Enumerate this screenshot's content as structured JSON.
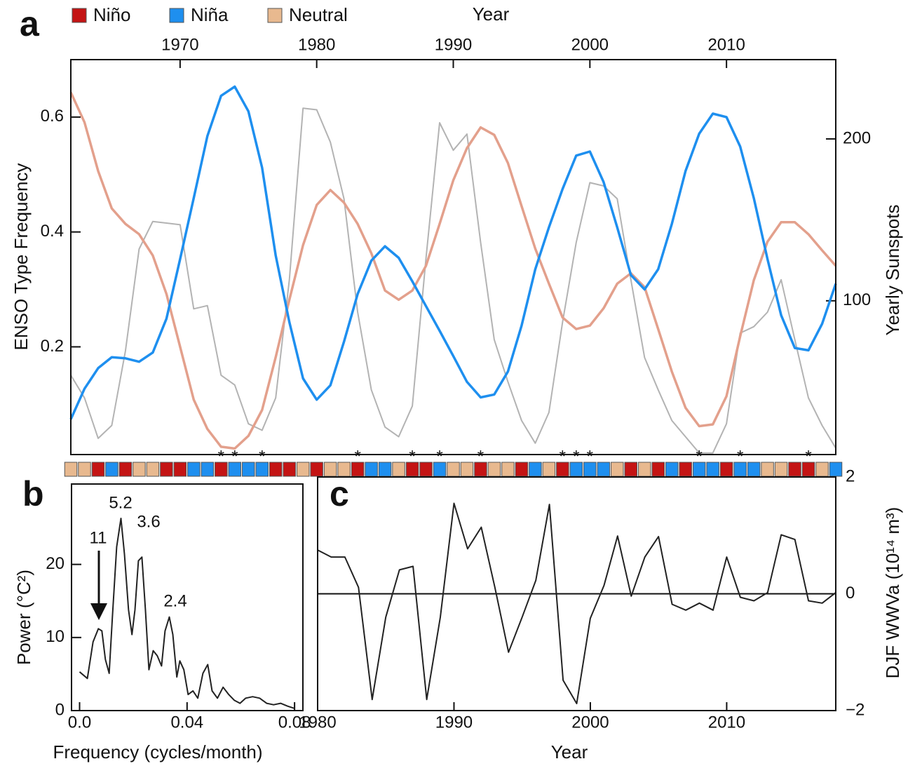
{
  "chart_data": [
    {
      "type": "line",
      "panel": "a",
      "xlabel": "Year",
      "ylabel": "ENSO Type Frequency",
      "y2label": "Yearly Sunspots",
      "x_axis": "top",
      "x": [
        1962,
        1963,
        1964,
        1965,
        1966,
        1967,
        1968,
        1969,
        1970,
        1971,
        1972,
        1973,
        1974,
        1975,
        1976,
        1977,
        1978,
        1979,
        1980,
        1981,
        1982,
        1983,
        1984,
        1985,
        1986,
        1987,
        1988,
        1989,
        1990,
        1991,
        1992,
        1993,
        1994,
        1995,
        1996,
        1997,
        1998,
        1999,
        2000,
        2001,
        2002,
        2003,
        2004,
        2005,
        2006,
        2007,
        2008,
        2009,
        2010,
        2011,
        2012,
        2013,
        2014,
        2015,
        2016,
        2017,
        2018
      ],
      "xlim": [
        1962,
        2018
      ],
      "xticks": [
        1970,
        1980,
        1990,
        2000,
        2010
      ],
      "ylim": [
        0.0125,
        0.7
      ],
      "yticks": [
        0.2,
        0.4,
        0.6
      ],
      "y2lim": [
        5,
        249
      ],
      "y2ticks": [
        100,
        200
      ],
      "series": [
        {
          "color": "#b3b3b3",
          "axis": "y2",
          "values": [
            54,
            40,
            15,
            23,
            69,
            132,
            149,
            148,
            147,
            95,
            97,
            54,
            48,
            24,
            20,
            40,
            113,
            219,
            218,
            198,
            163,
            93,
            45,
            22,
            16,
            35,
            126,
            210,
            193,
            203,
            136,
            76,
            50,
            26,
            12,
            31,
            87,
            136,
            173,
            171,
            163,
            113,
            65,
            45,
            26,
            16,
            6,
            6,
            24,
            80,
            84,
            93,
            113,
            76,
            40,
            23,
            9
          ]
        },
        {
          "color": "#e3a08c",
          "values": [
            0.643,
            0.591,
            0.506,
            0.441,
            0.414,
            0.396,
            0.359,
            0.292,
            0.2,
            0.108,
            0.057,
            0.026,
            0.023,
            0.045,
            0.09,
            0.182,
            0.282,
            0.377,
            0.447,
            0.473,
            0.451,
            0.414,
            0.363,
            0.298,
            0.282,
            0.298,
            0.341,
            0.414,
            0.49,
            0.546,
            0.582,
            0.569,
            0.52,
            0.445,
            0.371,
            0.31,
            0.251,
            0.231,
            0.237,
            0.267,
            0.31,
            0.328,
            0.304,
            0.231,
            0.157,
            0.094,
            0.062,
            0.065,
            0.114,
            0.218,
            0.316,
            0.383,
            0.417,
            0.417,
            0.396,
            0.368,
            0.341
          ]
        },
        {
          "color": "#1e8fef",
          "values": [
            0.074,
            0.127,
            0.163,
            0.182,
            0.18,
            0.174,
            0.19,
            0.249,
            0.353,
            0.459,
            0.567,
            0.637,
            0.653,
            0.61,
            0.512,
            0.359,
            0.243,
            0.145,
            0.108,
            0.133,
            0.209,
            0.292,
            0.35,
            0.375,
            0.355,
            0.314,
            0.271,
            0.228,
            0.184,
            0.139,
            0.112,
            0.117,
            0.157,
            0.237,
            0.335,
            0.408,
            0.475,
            0.533,
            0.54,
            0.487,
            0.408,
            0.325,
            0.3,
            0.335,
            0.414,
            0.506,
            0.571,
            0.606,
            0.6,
            0.549,
            0.459,
            0.353,
            0.255,
            0.198,
            0.194,
            0.24,
            0.31
          ]
        }
      ],
      "enso_types": {
        "names": [
          "Niño",
          "Niña",
          "Neutral"
        ],
        "colors": [
          "#c41414",
          "#1e8fef",
          "#e8b98f"
        ],
        "sequence": [
          "Neutral",
          "Neutral",
          "Niño",
          "Niña",
          "Niño",
          "Neutral",
          "Neutral",
          "Niño",
          "Niño",
          "Niña",
          "Niña",
          "Niño",
          "Niña",
          "Niña",
          "Niña",
          "Niño",
          "Niño",
          "Neutral",
          "Niño",
          "Neutral",
          "Neutral",
          "Niño",
          "Niña",
          "Niña",
          "Neutral",
          "Niño",
          "Niño",
          "Niña",
          "Neutral",
          "Neutral",
          "Niño",
          "Neutral",
          "Neutral",
          "Niño",
          "Niña",
          "Neutral",
          "Niño",
          "Niña",
          "Niña",
          "Niña",
          "Neutral",
          "Niño",
          "Neutral",
          "Niño",
          "Niña",
          "Niño",
          "Niña",
          "Niña",
          "Niño",
          "Niña",
          "Niña",
          "Neutral",
          "Neutral",
          "Niño",
          "Niño",
          "Neutral",
          "Niña"
        ]
      },
      "asterisk": "*",
      "asterisk_years": [
        1973,
        1974,
        1976,
        1983,
        1987,
        1989,
        1992,
        1998,
        1999,
        2000,
        2008,
        2011,
        2016
      ]
    },
    {
      "type": "line",
      "panel": "b",
      "xlabel": "Frequency (cycles/month)",
      "ylabel": "Power (°C²)",
      "x": [
        0.0,
        0.0029,
        0.005,
        0.007,
        0.0083,
        0.0096,
        0.011,
        0.0122,
        0.0138,
        0.0154,
        0.0167,
        0.0182,
        0.0195,
        0.0206,
        0.0219,
        0.0232,
        0.0245,
        0.0258,
        0.0274,
        0.0289,
        0.0305,
        0.0318,
        0.0334,
        0.0347,
        0.0362,
        0.0373,
        0.0388,
        0.0404,
        0.0422,
        0.044,
        0.0459,
        0.0477,
        0.0493,
        0.0513,
        0.0534,
        0.0555,
        0.0576,
        0.0597,
        0.0618,
        0.0644,
        0.067,
        0.0696,
        0.0722,
        0.0748,
        0.0774,
        0.08
      ],
      "values": [
        5.3,
        4.4,
        9.4,
        11.2,
        10.9,
        7.0,
        5.1,
        12.8,
        22.4,
        26.3,
        21.4,
        13.8,
        10.4,
        13.8,
        20.5,
        21.0,
        13.8,
        5.6,
        8.2,
        7.5,
        6.1,
        10.9,
        12.8,
        10.4,
        4.6,
        6.8,
        5.6,
        2.2,
        2.7,
        1.7,
        5.1,
        6.3,
        2.7,
        1.7,
        3.2,
        2.2,
        1.4,
        1.0,
        1.7,
        1.9,
        1.7,
        1.0,
        0.8,
        1.0,
        0.6,
        0.3
      ],
      "color": "#222222",
      "xlim": [
        -0.003,
        0.0831
      ],
      "xticks": [
        {
          "value": 0,
          "label": "0.0"
        },
        0.04,
        0.08
      ],
      "ylim": [
        0,
        31
      ],
      "yticks": [
        0,
        10,
        20
      ],
      "annotations": [
        "11",
        "5.2",
        "3.6",
        "2.4"
      ]
    },
    {
      "type": "line",
      "panel": "c",
      "xlabel": "Year",
      "ylabel": "DJF WWVa (10¹⁴ m³)",
      "y_axis": "right",
      "x": [
        1980,
        1981,
        1982,
        1983,
        1984,
        1985,
        1986,
        1987,
        1988,
        1989,
        1990,
        1991,
        1992,
        1993,
        1994,
        1995,
        1996,
        1997,
        1998,
        1999,
        2000,
        2001,
        2002,
        2003,
        2004,
        2005,
        2006,
        2007,
        2008,
        2009,
        2010,
        2011,
        2012,
        2013,
        2014,
        2015,
        2016,
        2017,
        2018
      ],
      "values": [
        0.75,
        0.63,
        0.63,
        0.11,
        -1.81,
        -0.4,
        0.41,
        0.47,
        -1.81,
        -0.4,
        1.55,
        0.77,
        1.14,
        0.11,
        -1.0,
        -0.4,
        0.23,
        1.53,
        -1.48,
        -1.88,
        -0.42,
        0.14,
        0.99,
        -0.04,
        0.63,
        0.98,
        -0.18,
        -0.28,
        -0.16,
        -0.28,
        0.63,
        -0.06,
        -0.12,
        0.02,
        1.01,
        0.93,
        -0.12,
        -0.16,
        0.02
      ],
      "color": "#222222",
      "xlim": [
        1980,
        2018
      ],
      "xticks": [
        1980,
        1990,
        2000,
        2010
      ],
      "ylim": [
        -2,
        2
      ],
      "yticks": [
        {
          "value": -2,
          "label": "−2"
        },
        0,
        2
      ],
      "reference_line": 0
    }
  ]
}
